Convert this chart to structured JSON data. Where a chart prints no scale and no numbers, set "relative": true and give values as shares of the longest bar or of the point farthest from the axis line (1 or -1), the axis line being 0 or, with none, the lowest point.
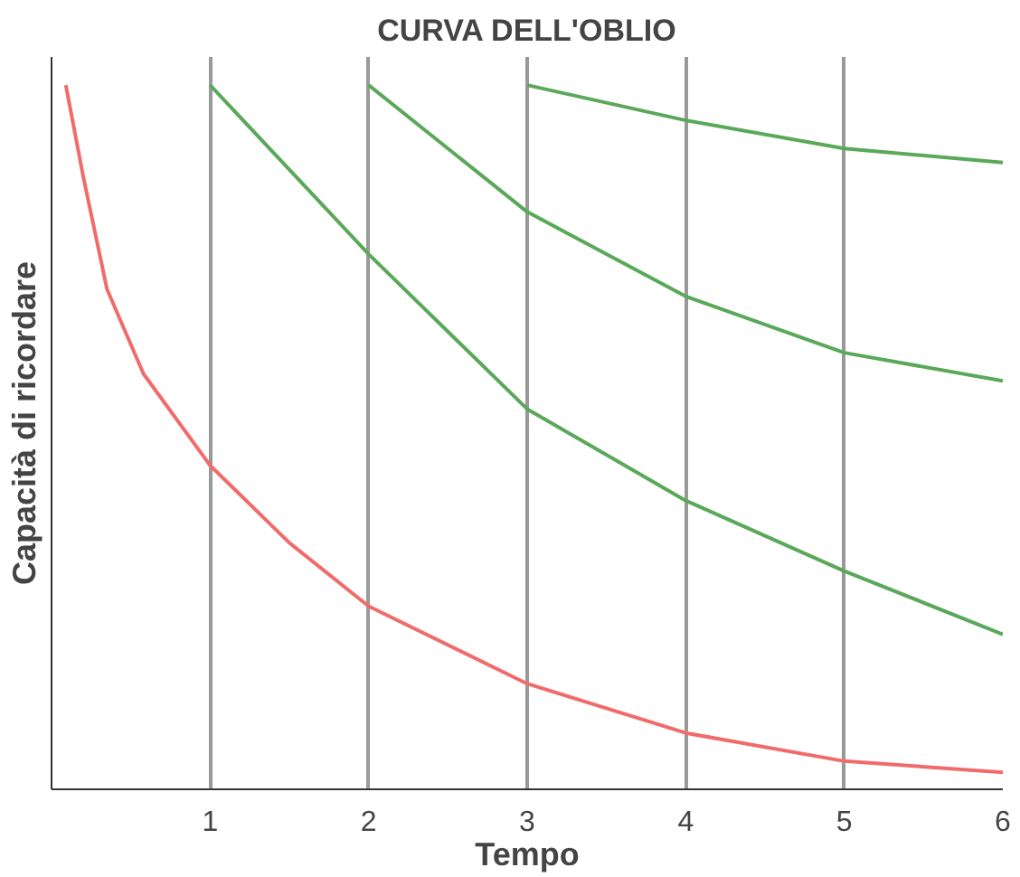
{
  "chart_data": {
    "type": "line",
    "title": "CURVA DELL'OBLIO",
    "xlabel": "Tempo",
    "ylabel": "Capacità di ricordare",
    "relative": true,
    "xlim": [
      0,
      6
    ],
    "xticks": [
      1,
      2,
      3,
      4,
      5,
      6
    ],
    "grid": "x",
    "tick_labels": "x",
    "marker": "none",
    "line_style": "solid",
    "series": [
      {
        "color": "#f26b6b",
        "x": [
          0.09,
          0.2,
          0.35,
          0.58,
          1,
          1.5,
          2,
          3,
          4,
          5,
          6
        ],
        "values": [
          1.0,
          0.87,
          0.71,
          0.59,
          0.46,
          0.35,
          0.26,
          0.15,
          0.08,
          0.04,
          0.024
        ]
      },
      {
        "color": "#5aa85a",
        "x": [
          1,
          2,
          3,
          4,
          5,
          6
        ],
        "values": [
          1.0,
          0.76,
          0.54,
          0.41,
          0.31,
          0.22
        ]
      },
      {
        "color": "#5aa85a",
        "x": [
          2,
          3,
          4,
          5,
          6
        ],
        "values": [
          1.0,
          0.82,
          0.7,
          0.62,
          0.58
        ]
      },
      {
        "color": "#5aa85a",
        "x": [
          3,
          4,
          5,
          6
        ],
        "values": [
          1.0,
          0.95,
          0.91,
          0.89
        ]
      }
    ]
  }
}
